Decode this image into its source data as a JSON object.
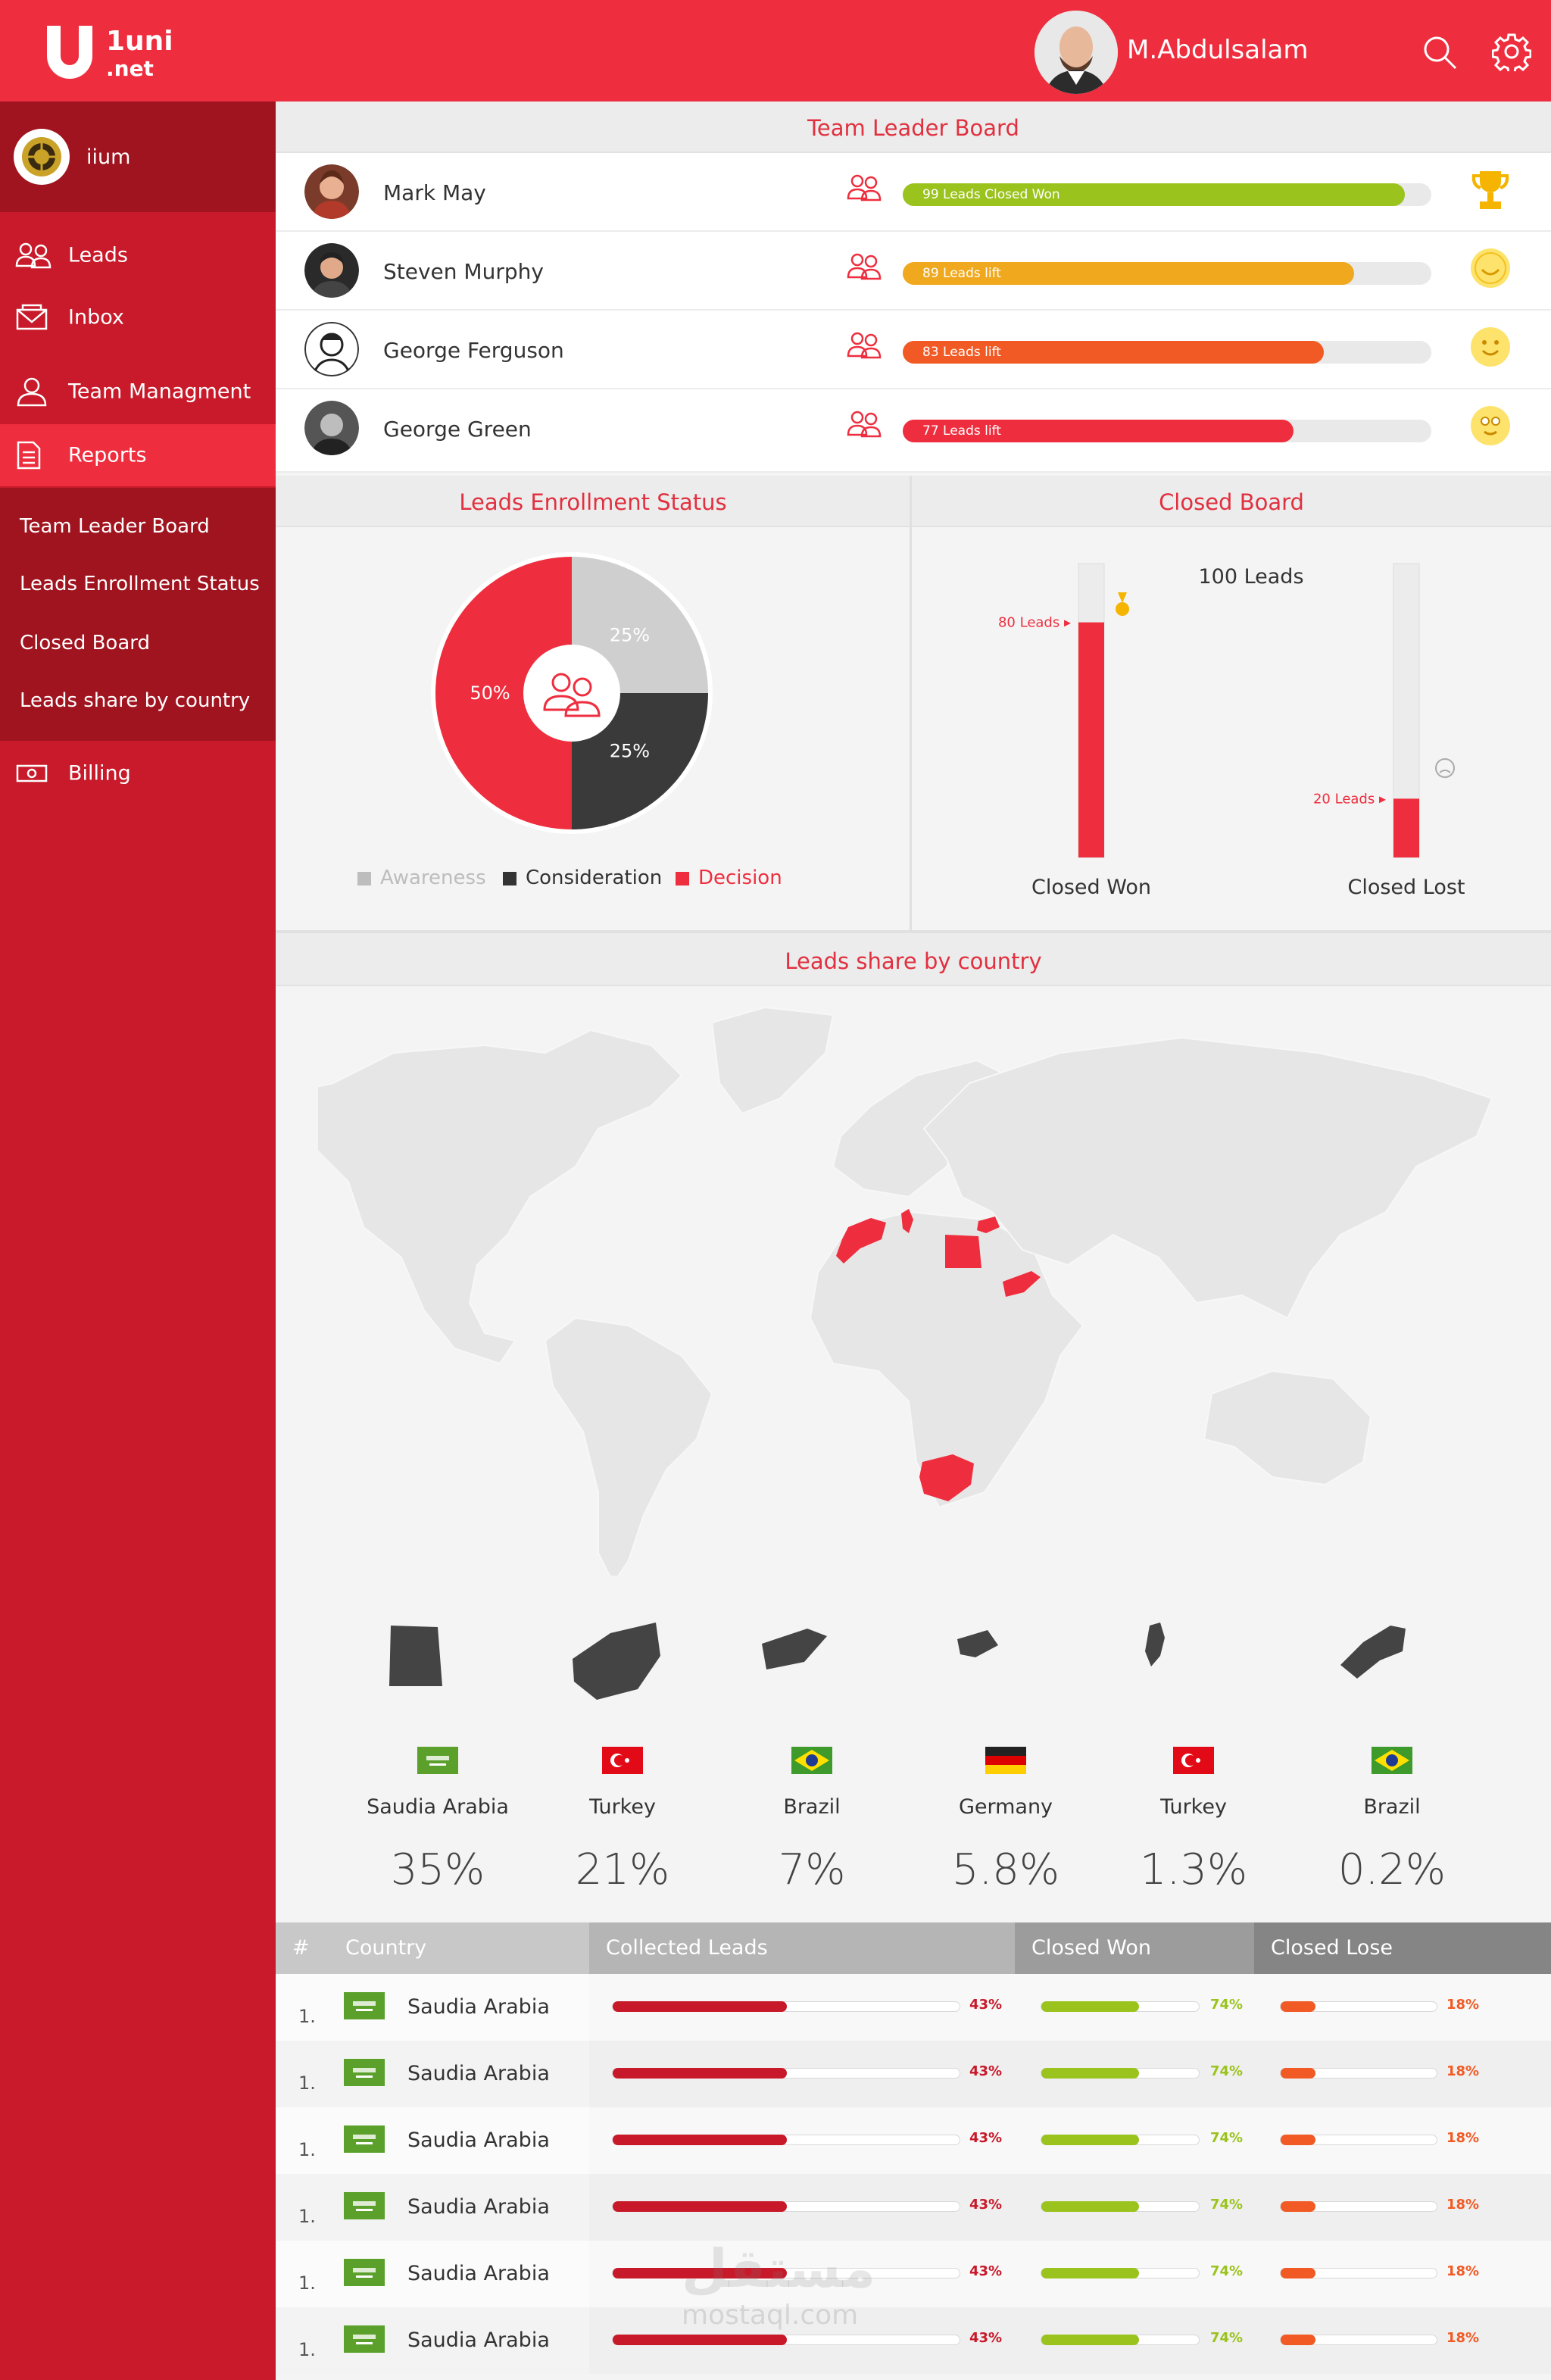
{
  "header": {
    "logo_top": "1uni",
    "logo_bottom": ".net",
    "username": "M.Abdulsalam"
  },
  "sidebar": {
    "org_name": "iium",
    "items": [
      {
        "label": "Leads",
        "icon": "users-icon"
      },
      {
        "label": "Inbox",
        "icon": "mail-icon"
      },
      {
        "label": "Team Managment",
        "icon": "team-icon"
      },
      {
        "label": "Reports",
        "icon": "document-icon"
      }
    ],
    "sub_items": [
      "Team Leader Board",
      "Leads Enrollment Status",
      "Closed Board",
      "Leads share by country"
    ],
    "billing": {
      "label": "Billing",
      "icon": "money-icon"
    }
  },
  "leaderboard": {
    "title": "Team Leader Board",
    "rows": [
      {
        "name": "Mark May",
        "bar_label": "99 Leads Closed Won",
        "value": 99,
        "color": "#9bc31d",
        "icon": "trophy-icon"
      },
      {
        "name": "Steven Murphy",
        "bar_label": "89 Leads lift",
        "value": 89,
        "color": "#f0a81e",
        "icon": "smile-icon"
      },
      {
        "name": "George Ferguson",
        "bar_label": "83 Leads lift",
        "value": 83,
        "color": "#f15a24",
        "icon": "smile-icon"
      },
      {
        "name": "George Green",
        "bar_label": "77 Leads lift",
        "value": 77,
        "color": "#ee2e3e",
        "icon": "smile-icon"
      }
    ]
  },
  "enrollment": {
    "title": "Leads Enrollment Status",
    "legend": [
      {
        "label": "Awareness",
        "color": "#bdbdbd"
      },
      {
        "label": "Consideration",
        "color": "#333333"
      },
      {
        "label": "Decision",
        "color": "#ee2e3e"
      }
    ]
  },
  "closed_board": {
    "title": "Closed Board",
    "total_label": "100 Leads",
    "won_label": "80 Leads",
    "lost_label": "20 Leads",
    "won_name": "Closed Won",
    "lost_name": "Closed Lost"
  },
  "chart_data": [
    {
      "type": "pie",
      "title": "Leads Enrollment Status",
      "categories": [
        "Awareness",
        "Consideration",
        "Decision"
      ],
      "values": [
        25,
        25,
        50
      ],
      "labels": [
        "25%",
        "25%",
        "50%"
      ]
    },
    {
      "type": "bar",
      "title": "Closed Board",
      "categories": [
        "Closed Won",
        "Closed Lost"
      ],
      "values": [
        80,
        20
      ],
      "ylim": [
        0,
        100
      ]
    }
  ],
  "country_share": {
    "title": "Leads share by country",
    "highlighted_regions": [
      "Morocco",
      "Tunisia",
      "Egypt",
      "Syria",
      "Yemen",
      "South Africa"
    ],
    "tiles": [
      {
        "name": "Saudia Arabia",
        "pct": "35%",
        "flag": "saudi-flag-icon",
        "shape": "egypt-shape-icon"
      },
      {
        "name": "Turkey",
        "pct": "21%",
        "flag": "turkey-flag-icon",
        "shape": "south-africa-shape-icon"
      },
      {
        "name": "Brazil",
        "pct": "7%",
        "flag": "brazil-flag-icon",
        "shape": "yemen-shape-icon"
      },
      {
        "name": "Germany",
        "pct": "5.8%",
        "flag": "germany-flag-icon",
        "shape": "syria-shape-icon"
      },
      {
        "name": "Turkey",
        "pct": "1.3%",
        "flag": "turkey-flag-icon",
        "shape": "tunisia-shape-icon"
      },
      {
        "name": "Brazil",
        "pct": "0.2%",
        "flag": "brazil-flag-icon",
        "shape": "morocco-shape-icon"
      }
    ]
  },
  "table": {
    "headers": [
      "#",
      "Country",
      "Collected Leads",
      "Closed Won",
      "Closed Lose"
    ],
    "rows": [
      {
        "num": "1.",
        "country": "Saudia Arabia",
        "collected": "43%",
        "won": "74%",
        "lose": "18%"
      },
      {
        "num": "1.",
        "country": "Saudia Arabia",
        "collected": "43%",
        "won": "74%",
        "lose": "18%"
      },
      {
        "num": "1.",
        "country": "Saudia Arabia",
        "collected": "43%",
        "won": "74%",
        "lose": "18%"
      },
      {
        "num": "1.",
        "country": "Saudia Arabia",
        "collected": "43%",
        "won": "74%",
        "lose": "18%"
      },
      {
        "num": "1.",
        "country": "Saudia Arabia",
        "collected": "43%",
        "won": "74%",
        "lose": "18%"
      },
      {
        "num": "1.",
        "country": "Saudia Arabia",
        "collected": "43%",
        "won": "74%",
        "lose": "18%"
      }
    ],
    "collected_value": 0.43,
    "won_value": 0.74,
    "lose_value": 0.18
  },
  "watermark": {
    "arabic": "مستقل",
    "latin": "mostaql.com"
  }
}
